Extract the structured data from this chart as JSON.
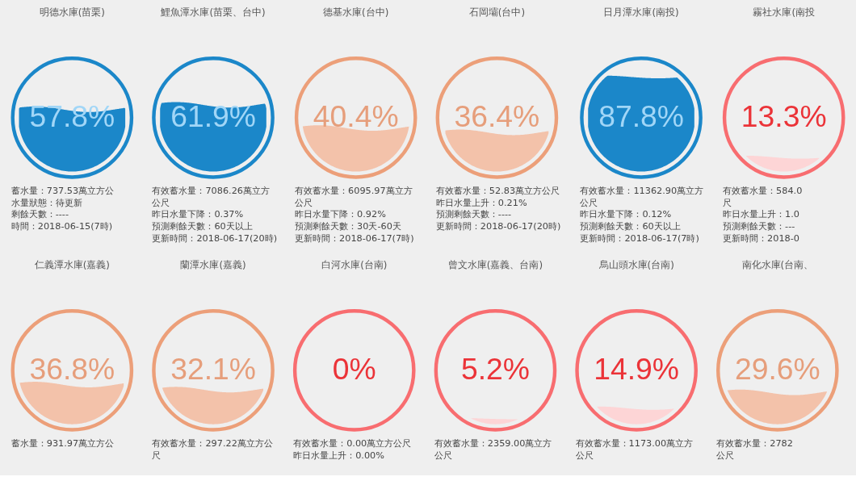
{
  "chart_data": [
    {
      "type": "other",
      "title": "明德水庫(苗栗)",
      "values": [
        57.8
      ],
      "value_labels": [
        "57.8%"
      ],
      "colors": [
        "#1b87c9"
      ],
      "annotations": [
        "蓄水量：737.53萬立方公",
        "水量狀態：待更新",
        "剩餘天數：----",
        "時間：2018-06-15(7時)"
      ]
    },
    {
      "type": "other",
      "title": "鯉魚潭水庫(苗栗、台中)",
      "values": [
        61.9
      ],
      "value_labels": [
        "61.9%"
      ],
      "colors": [
        "#1b87c9"
      ],
      "annotations": [
        "有效蓄水量：7086.26萬立方",
        "公尺",
        "昨日水量下降：0.37%",
        "預測剩餘天數：60天以上",
        "更新時間：2018-06-17(20時)"
      ]
    },
    {
      "type": "other",
      "title": "德基水庫(台中)",
      "values": [
        40.4
      ],
      "value_labels": [
        "40.4%"
      ],
      "colors": [
        "#f3c2aa"
      ],
      "annotations": [
        "有效蓄水量：6095.97萬立方",
        "公尺",
        "昨日水量下降：0.92%",
        "預測剩餘天數：30天-60天",
        "更新時間：2018-06-17(7時)"
      ]
    },
    {
      "type": "other",
      "title": "石岡壩(台中)",
      "values": [
        36.4
      ],
      "value_labels": [
        "36.4%"
      ],
      "colors": [
        "#f3c2aa"
      ],
      "annotations": [
        "有效蓄水量：52.83萬立方公尺",
        "昨日水量上升：0.21%",
        "預測剩餘天數：----",
        "更新時間：2018-06-17(20時)"
      ]
    },
    {
      "type": "other",
      "title": "日月潭水庫(南投)",
      "values": [
        87.8
      ],
      "value_labels": [
        "87.8%"
      ],
      "colors": [
        "#1b87c9"
      ],
      "annotations": [
        "有效蓄水量：11362.90萬立方",
        "公尺",
        "昨日水量下降：0.12%",
        "預測剩餘天數：60天以上",
        "更新時間：2018-06-17(7時)"
      ]
    },
    {
      "type": "other",
      "title": "霧社水庫(南投",
      "values": [
        13.3
      ],
      "value_labels": [
        "13.3%"
      ],
      "colors": [
        "#fdd5d6"
      ],
      "annotations": [
        "有效蓄水量：584.0",
        "尺",
        "昨日水量上升：1.0",
        "預測剩餘天數：---",
        "更新時間：2018-0"
      ]
    },
    {
      "type": "other",
      "title": "仁義潭水庫(嘉義)",
      "values": [
        36.8
      ],
      "value_labels": [
        "36.8%"
      ],
      "colors": [
        "#f3c2aa"
      ],
      "annotations": [
        "蓄水量：931.97萬立方公"
      ]
    },
    {
      "type": "other",
      "title": "蘭潭水庫(嘉義)",
      "values": [
        32.1
      ],
      "value_labels": [
        "32.1%"
      ],
      "colors": [
        "#f3c2aa"
      ],
      "annotations": [
        "有效蓄水量：297.22萬立方公",
        "尺"
      ]
    },
    {
      "type": "other",
      "title": "白河水庫(台南)",
      "values": [
        0
      ],
      "value_labels": [
        "0%"
      ],
      "colors": [
        "#fdd5d6"
      ],
      "annotations": [
        "有效蓄水量：0.00萬立方公尺",
        "昨日水量上升：0.00%"
      ]
    },
    {
      "type": "other",
      "title": "曾文水庫(嘉義、台南)",
      "values": [
        5.2
      ],
      "value_labels": [
        "5.2%"
      ],
      "colors": [
        "#fdd5d6"
      ],
      "annotations": [
        "有效蓄水量：2359.00萬立方",
        "公尺"
      ]
    },
    {
      "type": "other",
      "title": "烏山頭水庫(台南)",
      "values": [
        14.9
      ],
      "value_labels": [
        "14.9%"
      ],
      "colors": [
        "#fdd5d6"
      ],
      "annotations": [
        "有效蓄水量：1173.00萬立方",
        "公尺"
      ]
    },
    {
      "type": "other",
      "title": "南化水庫(台南、",
      "values": [
        29.6
      ],
      "value_labels": [
        "29.6%"
      ],
      "colors": [
        "#f3c2aa"
      ],
      "annotations": [
        "有效蓄水量：2782",
        "公尺"
      ]
    }
  ]
}
